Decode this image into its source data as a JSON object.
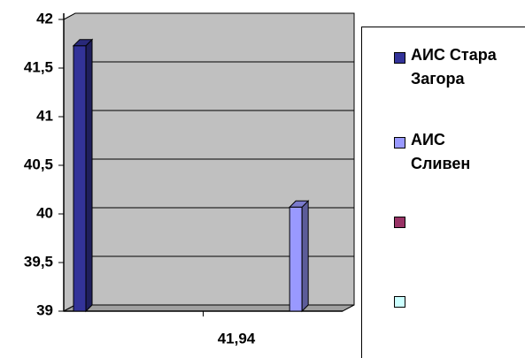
{
  "chart_data": {
    "type": "bar",
    "categories": [
      "41,94"
    ],
    "series": [
      {
        "name": "АИС Стара Загора",
        "color": "#333399",
        "values": [
          41.73
        ]
      },
      {
        "name": "АИС Сливен",
        "color": "#9999ff",
        "values": [
          40.07
        ]
      },
      {
        "name": null,
        "color": "#993366",
        "values": [
          null
        ]
      },
      {
        "name": null,
        "color": "#ccffff",
        "values": [
          null
        ]
      }
    ],
    "ylim": [
      39,
      42
    ],
    "yticks": [
      39,
      {
        "value": 39.5,
        "label": "39,5"
      },
      40,
      {
        "value": 40.5,
        "label": "40,5"
      },
      41,
      {
        "value": 41.5,
        "label": "41,5"
      },
      42
    ],
    "grid": true
  }
}
